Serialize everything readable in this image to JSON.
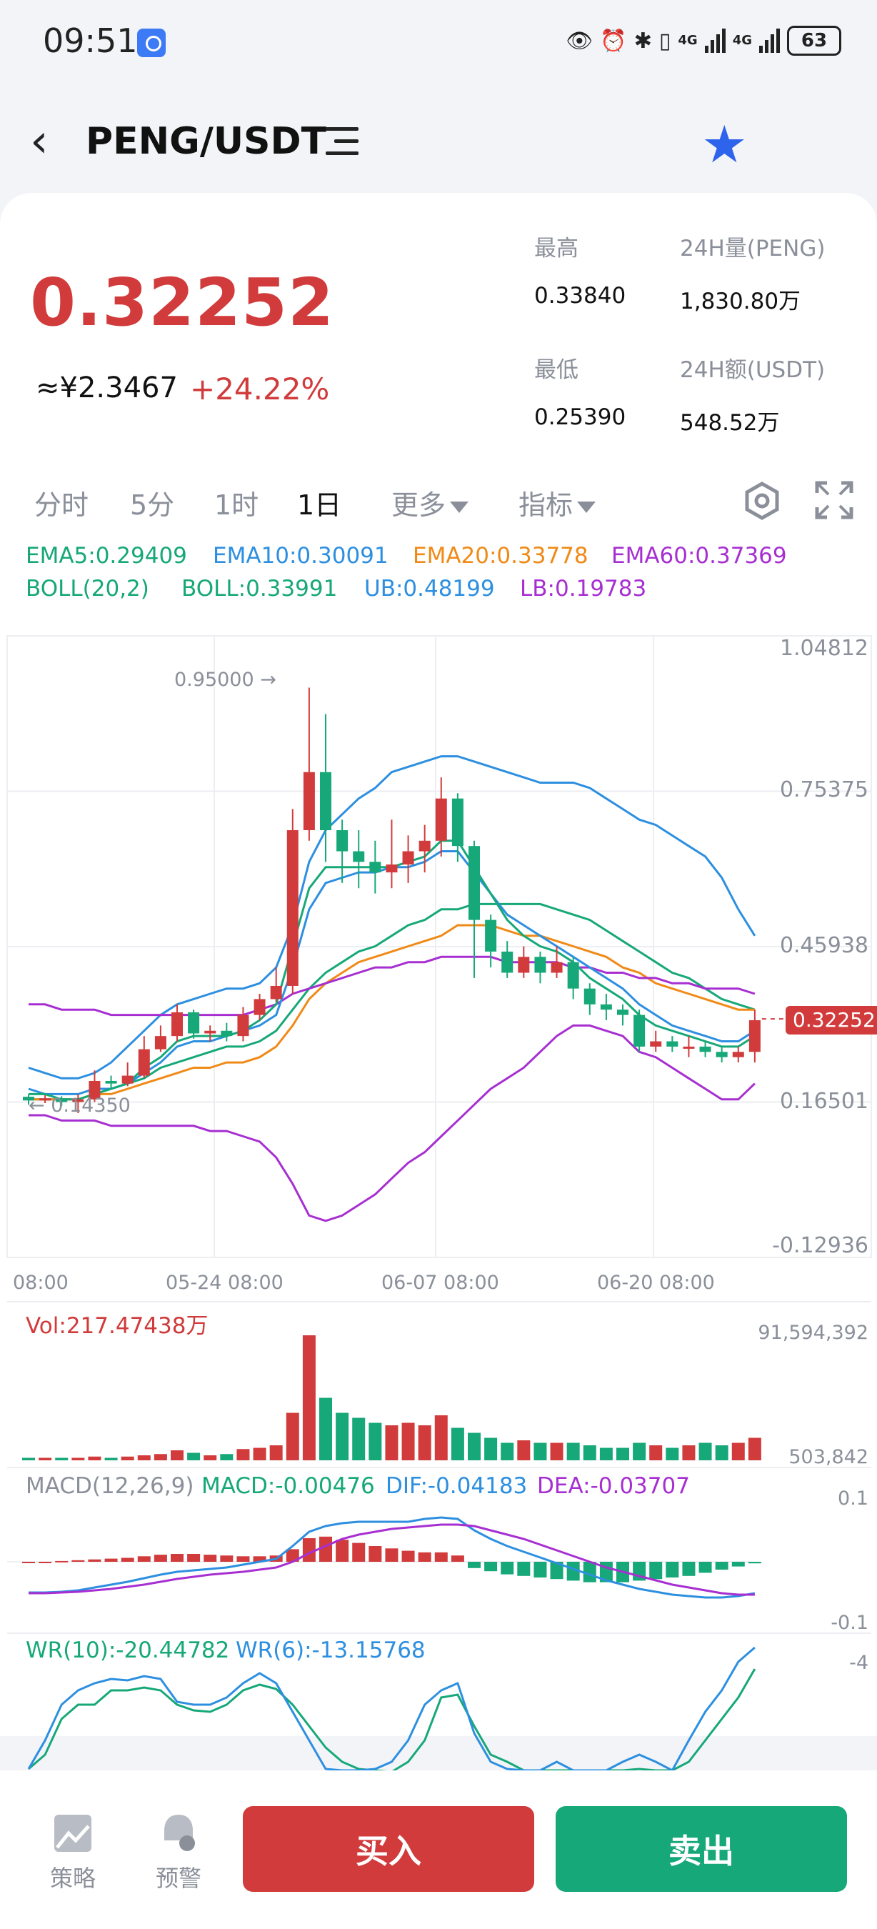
{
  "status": {
    "time": "09:51",
    "net1": "4G",
    "net2": "4G",
    "battery": "63"
  },
  "header": {
    "pair": "PENG/USDT"
  },
  "ticker": {
    "price": "0.32252",
    "cny": "≈¥2.3467",
    "change": "+24.22%",
    "high_label": "最高",
    "high": "0.33840",
    "vol_label": "24H量(PENG)",
    "vol": "1,830.80万",
    "low_label": "最低",
    "low": "0.25390",
    "amt_label": "24H额(USDT)",
    "amt": "548.52万"
  },
  "tabs": {
    "t1": "分时",
    "t2": "5分",
    "t3": "1时",
    "t4": "1日",
    "t5": "更多",
    "t6": "指标"
  },
  "indicators": {
    "ema5": "EMA5:0.29409",
    "ema10": "EMA10:0.30091",
    "ema20": "EMA20:0.33778",
    "ema60": "EMA60:0.37369",
    "boll": "BOLL(20,2)",
    "boll_mid": "BOLL:0.33991",
    "ub": "UB:0.48199",
    "lb": "LB:0.19783"
  },
  "price_axis": {
    "p1": "1.04812",
    "p2": "0.75375",
    "p3": "0.45938",
    "p4": "0.16501",
    "p5": "-0.12936",
    "current": "0.32252"
  },
  "annotations": {
    "high_mark": "0.95000 →",
    "low_mark": "← 0.14350"
  },
  "time_axis": {
    "x1": "08:00",
    "x2": "05-24 08:00",
    "x3": "06-07 08:00",
    "x4": "06-20 08:00"
  },
  "volume": {
    "label": "Vol:217.47438万",
    "max": "91,594,392",
    "min": "503,842"
  },
  "macd": {
    "label": "MACD(12,26,9)",
    "macd": "MACD:-0.00476",
    "dif": "DIF:-0.04183",
    "dea": "DEA:-0.03707",
    "top": "0.1",
    "bottom": "-0.1"
  },
  "wr": {
    "wr10": "WR(10):-20.44782",
    "wr6": "WR(6):-13.15768",
    "top": "-4"
  },
  "bottom_bar": {
    "strategy": "策略",
    "alert": "预警",
    "buy": "买入",
    "sell": "卖出"
  },
  "colors": {
    "up": "#d13b3b",
    "down": "#16a878",
    "ema5": "#16a878",
    "ema10": "#2d8fe0",
    "ema20": "#f08a17",
    "ema60": "#a72fd1"
  },
  "chart_data": {
    "type": "candlestick",
    "ylim": [
      -0.12936,
      1.04812
    ],
    "series": [
      {
        "name": "EMA5",
        "values": [
          0.29409
        ]
      },
      {
        "name": "EMA10",
        "values": [
          0.30091
        ]
      },
      {
        "name": "EMA20",
        "values": [
          0.33778
        ]
      },
      {
        "name": "EMA60",
        "values": [
          0.37369
        ]
      },
      {
        "name": "BOLL",
        "values": [
          0.33991
        ]
      },
      {
        "name": "UB",
        "values": [
          0.48199
        ]
      },
      {
        "name": "LB",
        "values": [
          0.19783
        ]
      }
    ],
    "candles": [
      [
        0.175,
        0.168,
        0.18,
        0.16
      ],
      [
        0.168,
        0.172,
        0.178,
        0.163
      ],
      [
        0.172,
        0.165,
        0.176,
        0.158
      ],
      [
        0.165,
        0.17,
        0.18,
        0.144
      ],
      [
        0.17,
        0.205,
        0.225,
        0.165
      ],
      [
        0.205,
        0.2,
        0.215,
        0.19
      ],
      [
        0.2,
        0.215,
        0.24,
        0.195
      ],
      [
        0.215,
        0.265,
        0.29,
        0.21
      ],
      [
        0.265,
        0.29,
        0.31,
        0.26
      ],
      [
        0.29,
        0.335,
        0.35,
        0.28
      ],
      [
        0.335,
        0.295,
        0.34,
        0.285
      ],
      [
        0.295,
        0.3,
        0.31,
        0.28
      ],
      [
        0.3,
        0.29,
        0.315,
        0.28
      ],
      [
        0.29,
        0.33,
        0.345,
        0.28
      ],
      [
        0.33,
        0.36,
        0.37,
        0.32
      ],
      [
        0.36,
        0.385,
        0.42,
        0.355
      ],
      [
        0.385,
        0.68,
        0.72,
        0.37
      ],
      [
        0.68,
        0.79,
        0.95,
        0.66
      ],
      [
        0.79,
        0.68,
        0.9,
        0.62
      ],
      [
        0.68,
        0.64,
        0.7,
        0.58
      ],
      [
        0.64,
        0.62,
        0.68,
        0.57
      ],
      [
        0.62,
        0.6,
        0.66,
        0.56
      ],
      [
        0.6,
        0.615,
        0.7,
        0.57
      ],
      [
        0.615,
        0.64,
        0.67,
        0.58
      ],
      [
        0.64,
        0.66,
        0.69,
        0.6
      ],
      [
        0.66,
        0.74,
        0.78,
        0.63
      ],
      [
        0.74,
        0.65,
        0.75,
        0.62
      ],
      [
        0.65,
        0.51,
        0.66,
        0.4
      ],
      [
        0.51,
        0.45,
        0.52,
        0.42
      ],
      [
        0.45,
        0.41,
        0.47,
        0.4
      ],
      [
        0.41,
        0.44,
        0.46,
        0.4
      ],
      [
        0.44,
        0.41,
        0.45,
        0.39
      ],
      [
        0.41,
        0.43,
        0.46,
        0.4
      ],
      [
        0.43,
        0.38,
        0.44,
        0.36
      ],
      [
        0.38,
        0.35,
        0.39,
        0.33
      ],
      [
        0.35,
        0.34,
        0.37,
        0.32
      ],
      [
        0.34,
        0.33,
        0.35,
        0.31
      ],
      [
        0.33,
        0.27,
        0.34,
        0.26
      ],
      [
        0.27,
        0.28,
        0.3,
        0.26
      ],
      [
        0.28,
        0.27,
        0.29,
        0.26
      ],
      [
        0.27,
        0.27,
        0.29,
        0.25
      ],
      [
        0.27,
        0.26,
        0.28,
        0.25
      ],
      [
        0.26,
        0.25,
        0.27,
        0.24
      ],
      [
        0.25,
        0.26,
        0.27,
        0.24
      ],
      [
        0.26,
        0.32,
        0.34,
        0.24
      ]
    ],
    "volume_range": [
      503842,
      91594392
    ],
    "macd_range": [
      -0.1,
      0.1
    ]
  }
}
